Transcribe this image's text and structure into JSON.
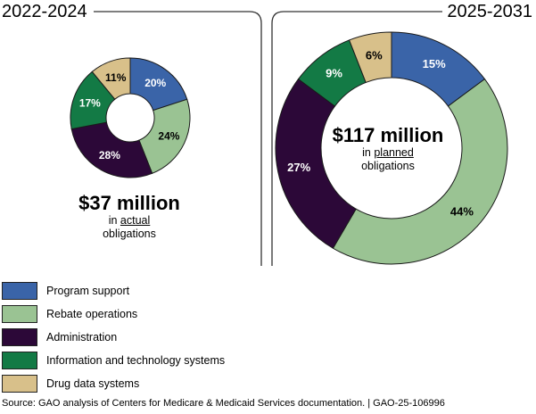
{
  "colors": {
    "program_support": "#3a64a8",
    "rebate_operations": "#9ac393",
    "administration": "#2c0838",
    "information_technology": "#137a45",
    "drug_data": "#d8c08a",
    "frame": "#333333"
  },
  "legend": [
    {
      "label": "Program support",
      "color": "#3a64a8"
    },
    {
      "label": "Rebate operations",
      "color": "#9ac393"
    },
    {
      "label": "Administration",
      "color": "#2c0838"
    },
    {
      "label": "Information and technology systems",
      "color": "#137a45"
    },
    {
      "label": "Drug data systems",
      "color": "#d8c08a"
    }
  ],
  "chart_data": [
    {
      "type": "pie",
      "title": "2022-2024",
      "total": {
        "amount": "$37 million",
        "line1_prefix": "in ",
        "line1_emph": "actual",
        "line2": "obligations"
      },
      "slices": [
        {
          "label": "20%",
          "value": 20,
          "category": "Program support",
          "color": "#3a64a8"
        },
        {
          "label": "24%",
          "value": 24,
          "category": "Rebate operations",
          "color": "#9ac393"
        },
        {
          "label": "28%",
          "value": 28,
          "category": "Administration",
          "color": "#2c0838"
        },
        {
          "label": "17%",
          "value": 17,
          "category": "Information and technology systems",
          "color": "#137a45"
        },
        {
          "label": "11%",
          "value": 11,
          "category": "Drug data systems",
          "color": "#d8c08a"
        }
      ]
    },
    {
      "type": "pie",
      "title": "2025-2031",
      "total": {
        "amount": "$117 million",
        "line1_prefix": "in ",
        "line1_emph": "planned",
        "line2": "obligations"
      },
      "slices": [
        {
          "label": "15%",
          "value": 15,
          "category": "Program support",
          "color": "#3a64a8"
        },
        {
          "label": "44%",
          "value": 44,
          "category": "Rebate operations",
          "color": "#9ac393"
        },
        {
          "label": "27%",
          "value": 27,
          "category": "Administration",
          "color": "#2c0838"
        },
        {
          "label": "9%",
          "value": 9,
          "category": "Information and technology systems",
          "color": "#137a45"
        },
        {
          "label": "6%",
          "value": 6,
          "category": "Drug data systems",
          "color": "#d8c08a"
        }
      ]
    }
  ],
  "source": "Source: GAO analysis of Centers for Medicare & Medicaid Services documentation.  |  GAO-25-106996"
}
